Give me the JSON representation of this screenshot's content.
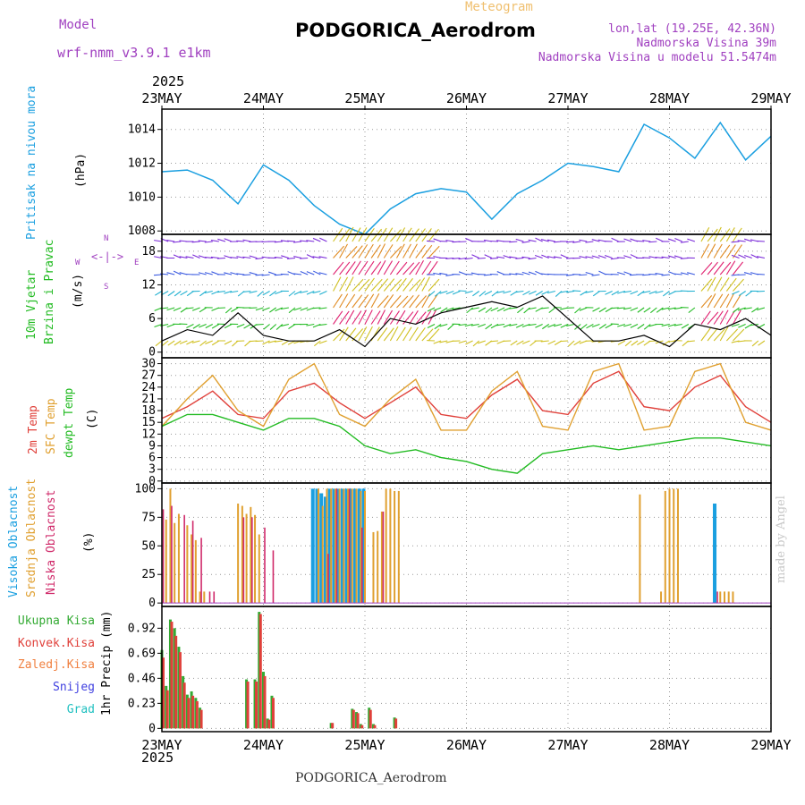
{
  "header": {
    "model_label": "Model",
    "model_name": "wrf-nmm_v3.9.1 e1km",
    "product": "Meteogram",
    "station": "PODGORICA_Aerodrom",
    "coords": "lon,lat (19.25E, 42.36N)",
    "elevation": "Nadmorska Visina 39m",
    "model_elevation": "Nadmorska Visina u modelu 51.5474m",
    "footer_station": "PODGORICA_Aerodrom",
    "credit": "made by Angel"
  },
  "time_axis": {
    "year": "2025",
    "labels": [
      "23MAY",
      "24MAY",
      "25MAY",
      "26MAY",
      "27MAY",
      "28MAY",
      "29MAY"
    ]
  },
  "colors": {
    "pressure": "#1a9fe0",
    "temp2m": "#e0403a",
    "sfc_temp": "#e0a030",
    "dewpoint": "#22bb22",
    "high_cloud": "#1a9fe0",
    "mid_cloud": "#e0a030",
    "low_cloud": "#d02a6a",
    "total_precip": "#33aa33",
    "conv_precip": "#e0403a",
    "snow": "#4040e0",
    "hail": "#20c0c0",
    "wind_label": "#22bb22",
    "wind_dir": "#a040c0"
  },
  "chart_data": [
    {
      "type": "line",
      "panel": "pressure",
      "label_colored": "Pritisak na nivou mora",
      "unit": "(hPa)",
      "y_ticks": [
        "1008",
        "1010",
        "1012",
        "1014"
      ],
      "ylim": [
        1007.8,
        1015.2
      ],
      "x": [
        0,
        6,
        12,
        18,
        24,
        30,
        36,
        42,
        48,
        54,
        60,
        66,
        72,
        78,
        84,
        90,
        96,
        102,
        108,
        114,
        120,
        126,
        132,
        138,
        144
      ],
      "series": [
        {
          "values": [
            1011.5,
            1011.6,
            1011.0,
            1009.6,
            1011.9,
            1011.0,
            1009.5,
            1008.4,
            1007.8,
            1009.3,
            1010.2,
            1010.5,
            1010.3,
            1008.7,
            1010.2,
            1011.0,
            1012.0,
            1011.8,
            1011.5,
            1014.3,
            1013.5,
            1012.3,
            1014.4,
            1012.2,
            1013.6
          ]
        }
      ]
    },
    {
      "type": "line",
      "panel": "wind",
      "label_colored_1": "10m Vjetar",
      "label_colored_2": "Brzina i Pravac",
      "unit": "(m/s)",
      "y_ticks": [
        "0",
        "6",
        "12",
        "18"
      ],
      "ylim": [
        -1,
        21
      ],
      "compass": [
        "N",
        "W",
        "E",
        "S"
      ],
      "x": [
        0,
        6,
        12,
        18,
        24,
        30,
        36,
        42,
        48,
        54,
        60,
        66,
        72,
        78,
        84,
        90,
        96,
        102,
        108,
        114,
        120,
        126,
        132,
        138,
        144
      ],
      "series": [
        {
          "values": [
            2,
            4,
            3,
            7,
            3,
            2,
            2,
            4,
            1,
            6,
            5,
            7,
            8,
            9,
            8,
            10,
            6,
            2,
            2,
            3,
            1,
            5,
            4,
            6,
            3
          ]
        }
      ]
    },
    {
      "type": "line",
      "panel": "temperature",
      "label_colored_1": "2m Temp",
      "label_colored_2": "SFC Temp",
      "label_colored_3": "dewpt Temp",
      "unit": "(C)",
      "y_ticks": [
        "0",
        "3",
        "6",
        "9",
        "12",
        "15",
        "18",
        "21",
        "24",
        "27",
        "30"
      ],
      "ylim": [
        -0.5,
        31.5
      ],
      "x": [
        0,
        6,
        12,
        18,
        24,
        30,
        36,
        42,
        48,
        54,
        60,
        66,
        72,
        78,
        84,
        90,
        96,
        102,
        108,
        114,
        120,
        126,
        132,
        138,
        144
      ],
      "series": [
        {
          "name": "2m Temp",
          "values": [
            16,
            19,
            23,
            17,
            16,
            23,
            25,
            20,
            16,
            20,
            24,
            17,
            16,
            22,
            26,
            18,
            17,
            25,
            28,
            19,
            18,
            24,
            27,
            19,
            15
          ]
        },
        {
          "name": "SFC Temp",
          "values": [
            14,
            21,
            27,
            18,
            14,
            26,
            30,
            17,
            14,
            21,
            26,
            13,
            13,
            23,
            28,
            14,
            13,
            28,
            30,
            13,
            14,
            28,
            30,
            15,
            13
          ]
        },
        {
          "name": "dewpt Temp",
          "values": [
            14,
            17,
            17,
            15,
            13,
            16,
            16,
            14,
            9,
            7,
            8,
            6,
            5,
            3,
            2,
            7,
            8,
            9,
            8,
            9,
            10,
            11,
            11,
            10,
            9
          ]
        }
      ]
    },
    {
      "type": "bar",
      "panel": "clouds",
      "label_colored_1": "Visoka Oblacnost",
      "label_colored_2": "Srednja Oblacnost",
      "label_colored_3": "Niska Oblacnost",
      "unit": "(%)",
      "y_ticks": [
        "0",
        "25",
        "50",
        "75",
        "100"
      ],
      "ylim": [
        -3,
        105
      ],
      "series": [
        {
          "name": "Visoka Oblacnost",
          "x": [
            36,
            37,
            38,
            39,
            40,
            41,
            42,
            43,
            44,
            45,
            46,
            47,
            48,
            131
          ],
          "values": [
            100,
            100,
            96,
            93,
            100,
            100,
            100,
            100,
            100,
            100,
            100,
            100,
            100,
            87
          ]
        },
        {
          "name": "Srednja Oblacnost",
          "x": [
            1,
            2,
            3,
            4,
            6,
            7,
            8,
            9,
            10,
            18,
            19,
            20,
            21,
            22,
            23,
            37,
            38,
            39,
            40,
            41,
            42,
            43,
            44,
            45,
            46,
            47,
            48,
            50,
            51,
            52,
            53,
            54,
            55,
            56,
            113,
            118,
            119,
            120,
            121,
            122,
            132,
            133,
            134,
            135
          ],
          "values": [
            73,
            100,
            70,
            78,
            68,
            60,
            55,
            10,
            10,
            87,
            85,
            78,
            84,
            77,
            60,
            100,
            85,
            100,
            100,
            100,
            100,
            100,
            100,
            100,
            100,
            98,
            98,
            62,
            63,
            80,
            100,
            100,
            98,
            98,
            95,
            10,
            98,
            100,
            100,
            100,
            10,
            10,
            10,
            10
          ]
        },
        {
          "name": "Niska Oblacnost",
          "x": [
            0,
            2,
            5,
            7,
            9,
            11,
            12,
            19,
            21,
            24,
            26,
            39,
            41,
            44,
            47,
            52,
            131
          ],
          "values": [
            82,
            85,
            77,
            72,
            57,
            10,
            10,
            75,
            75,
            66,
            46,
            43,
            100,
            100,
            66,
            80,
            10
          ]
        }
      ]
    },
    {
      "type": "bar",
      "panel": "precip",
      "label_colored_1": "Ukupna Kisa",
      "label_colored_2": "Konvek.Kisa",
      "label_colored_3": "Zaledj.Kisa",
      "label_colored_4": "Snijeg",
      "label_colored_5": "Grad",
      "unit": "1hr Precip (mm)",
      "y_ticks": [
        "0",
        "0.23",
        "0.46",
        "0.69",
        "0.92"
      ],
      "ylim": [
        -0.03,
        1.12
      ],
      "x": [
        0,
        1,
        2,
        3,
        4,
        5,
        6,
        7,
        8,
        9,
        10,
        11,
        12,
        20,
        21,
        22,
        23,
        24,
        25,
        26,
        27,
        40,
        45,
        46,
        47,
        49,
        50,
        55
      ],
      "series": [
        {
          "name": "Ukupna Kisa",
          "values": [
            0.72,
            0.39,
            1.0,
            0.92,
            0.75,
            0.48,
            0.31,
            0.34,
            0.28,
            0.19,
            0.0,
            0.0,
            0.0,
            0.45,
            0.0,
            0.45,
            1.07,
            0.52,
            0.09,
            0.3,
            0.0,
            0.05,
            0.18,
            0.15,
            0.04,
            0.19,
            0.04,
            0.1
          ]
        },
        {
          "name": "Konvek.Kisa",
          "values": [
            0.65,
            0.35,
            0.98,
            0.85,
            0.7,
            0.42,
            0.28,
            0.3,
            0.25,
            0.17,
            0.0,
            0.0,
            0.0,
            0.43,
            0.0,
            0.43,
            1.05,
            0.48,
            0.08,
            0.28,
            0.0,
            0.05,
            0.17,
            0.14,
            0.03,
            0.17,
            0.03,
            0.09
          ]
        }
      ]
    }
  ]
}
